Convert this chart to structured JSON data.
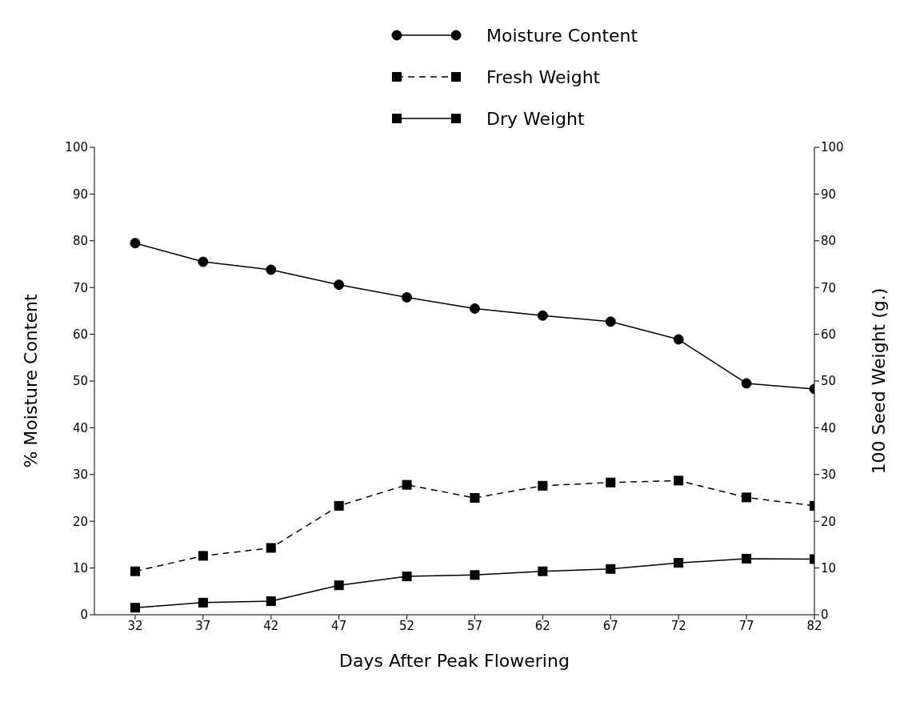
{
  "chart_data": {
    "type": "line",
    "xlabel": "Days After Peak Flowering",
    "ylabel": "% Moisture Content",
    "y2label": "100 Seed Weight (g.)",
    "x": [
      32,
      37,
      42,
      47,
      52,
      57,
      62,
      67,
      72,
      77,
      82
    ],
    "xlim": [
      29,
      82
    ],
    "xticks": [
      32,
      37,
      42,
      47,
      52,
      57,
      62,
      67,
      72,
      77,
      82
    ],
    "ylim": [
      0,
      100
    ],
    "yticks": [
      0,
      10,
      20,
      30,
      40,
      50,
      60,
      70,
      80,
      90,
      100
    ],
    "y2lim": [
      0,
      100
    ],
    "y2ticks": [
      0,
      10,
      20,
      30,
      40,
      50,
      60,
      70,
      80,
      90,
      100
    ],
    "grid": false,
    "legend": "top",
    "series": [
      {
        "name": "Moisture Content",
        "color": "#000000",
        "marker": "circle",
        "line_style": "solid",
        "values": [
          79.5,
          75.5,
          73.8,
          70.6,
          67.9,
          65.5,
          64.0,
          62.7,
          58.9,
          49.5,
          48.3
        ]
      },
      {
        "name": "Fresh Weight",
        "color": "#000000",
        "marker": "square",
        "line_style": "dashed",
        "axis": "y2",
        "values": [
          9.3,
          12.6,
          14.3,
          23.3,
          27.8,
          25.0,
          27.6,
          28.3,
          28.7,
          25.1,
          23.3
        ]
      },
      {
        "name": "Dry Weight",
        "color": "#000000",
        "marker": "square",
        "line_style": "solid",
        "axis": "y2",
        "values": [
          1.5,
          2.6,
          2.9,
          6.3,
          8.2,
          8.5,
          9.3,
          9.8,
          11.1,
          12.0,
          11.9
        ]
      }
    ]
  }
}
